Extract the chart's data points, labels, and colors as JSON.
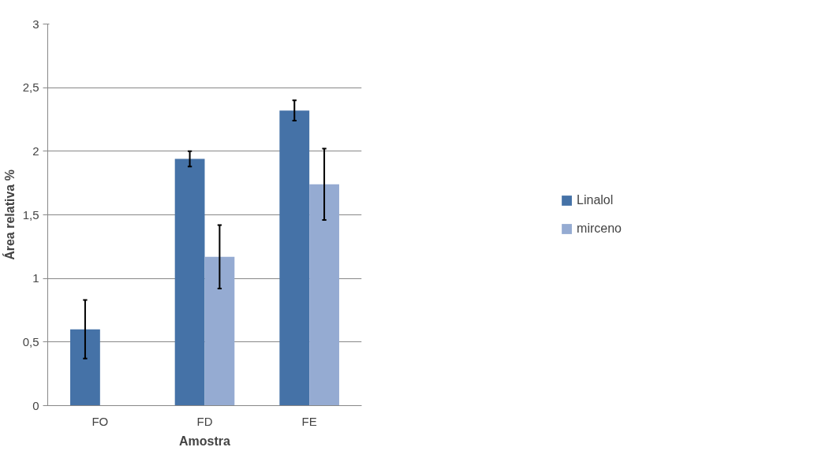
{
  "chart_data": {
    "type": "bar",
    "xlabel": "Amostra",
    "ylabel": "Área relativa %",
    "categories": [
      "FO",
      "FD",
      "FE"
    ],
    "series": [
      {
        "name": "Linalol",
        "color": "#4572a7",
        "values": [
          0.6,
          1.94,
          2.32
        ],
        "errors": [
          0.23,
          0.06,
          0.08
        ]
      },
      {
        "name": "mirceno",
        "color": "#95abd2",
        "values": [
          null,
          1.17,
          1.74
        ],
        "errors": [
          null,
          0.25,
          0.28
        ]
      }
    ],
    "ylim": [
      0,
      3
    ],
    "yticks": [
      0,
      {
        "value": 0.5,
        "label": "0,5"
      },
      1,
      {
        "value": 1.5,
        "label": "1,5"
      },
      2,
      {
        "value": 2.5,
        "label": "2,5"
      },
      3
    ],
    "grid": "y",
    "legend": "right"
  }
}
